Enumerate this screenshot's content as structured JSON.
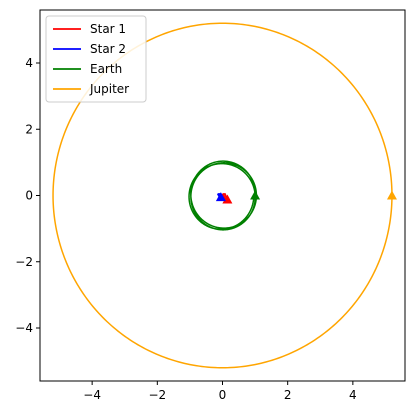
{
  "chart_data": {
    "type": "line",
    "title": "",
    "xlabel": "",
    "ylabel": "",
    "xlim": [
      -5.6,
      5.6
    ],
    "ylim": [
      -5.6,
      5.6
    ],
    "grid": false,
    "aspect": "equal",
    "legend_position": "top-left",
    "x_ticks": [
      -4,
      -2,
      0,
      2,
      4
    ],
    "y_ticks": [
      -4,
      -2,
      0,
      2,
      4
    ],
    "x_tick_labels": [
      "−4",
      "−2",
      "0",
      "2",
      "4"
    ],
    "y_tick_labels": [
      "−4",
      "−2",
      "0",
      "2",
      "4"
    ],
    "series": [
      {
        "name": "Star 1",
        "color": "#ff0000",
        "x": [
          0.0,
          0.08,
          0.15,
          0.08,
          0.0
        ],
        "y": [
          0.05,
          0.05,
          -0.12,
          -0.12,
          0.05
        ],
        "end_marker": {
          "x": 0.15,
          "y": -0.12,
          "shape": "triangle"
        }
      },
      {
        "name": "Star 2",
        "color": "#0000ff",
        "x": [
          -0.15,
          -0.05,
          0.05,
          -0.05,
          -0.15
        ],
        "y": [
          0.05,
          0.05,
          -0.12,
          -0.12,
          0.05
        ],
        "end_marker": {
          "x": -0.05,
          "y": -0.05,
          "shape": "triangle"
        }
      },
      {
        "name": "Earth",
        "color": "#008000",
        "orbit": {
          "cx": 0.0,
          "cy": 0.0,
          "radius": 1.0,
          "turns": 3,
          "spread": 0.04
        },
        "end_marker": {
          "x": 1.0,
          "y": 0.0,
          "shape": "triangle"
        }
      },
      {
        "name": "Jupiter",
        "color": "#ffa500",
        "orbit": {
          "cx": 0.0,
          "cy": 0.0,
          "radius": 5.2,
          "turns": 1,
          "spread": 0.0
        },
        "end_marker": {
          "x": 5.2,
          "y": 0.0,
          "shape": "triangle"
        }
      }
    ]
  }
}
